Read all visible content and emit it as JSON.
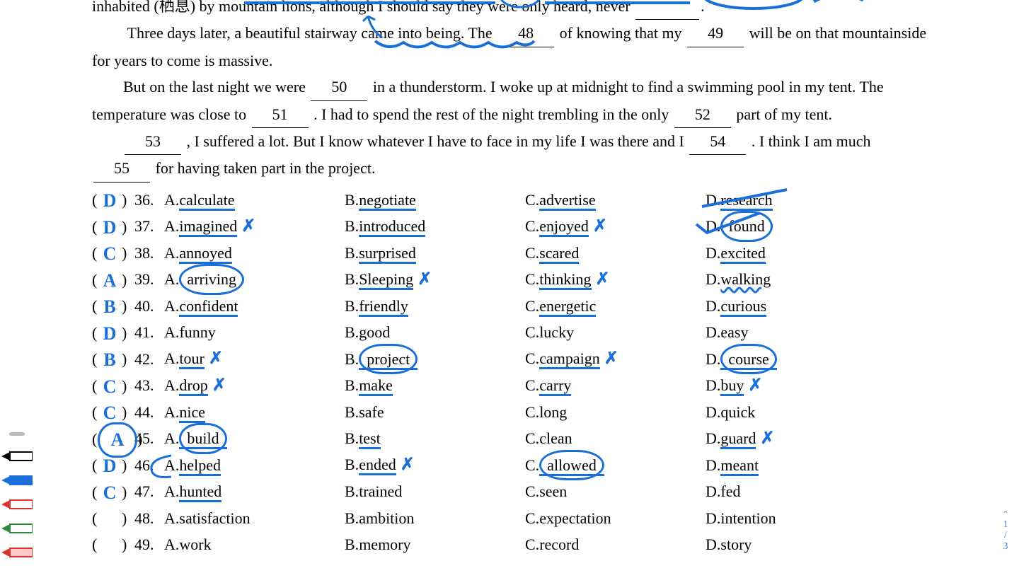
{
  "ink_color": "#1b6fd8",
  "passage": {
    "line0": "inhabited (栖息) by mountain lions, although I should say they were only heard, never",
    "line1_a": "Three days later, a beautiful stairway came into being. The",
    "blank48": "48",
    "line1_b": "of knowing that my",
    "blank49": "49",
    "line1_c": "will be on that mountainside for years to come is massive.",
    "line2_a": "But on the last night we were",
    "blank50": "50",
    "line2_b": "in a thunderstorm. I woke up at midnight to find a swimming pool in my tent. The temperature was close to",
    "blank51": "51",
    "line2_c": ". I had to spend the rest of the night trembling in the only",
    "blank52": "52",
    "line2_d": "part of my tent.",
    "blank53": "53",
    "line3_a": ", I suffered a lot. But I know whatever I have to face in my life I was there and I",
    "blank54": "54",
    "line3_b": ". I think I am much",
    "blank55": "55",
    "line3_c": "for having taken part in the project."
  },
  "questions": [
    {
      "n": "36",
      "written": "D",
      "opts": [
        {
          "l": "A.",
          "w": "calculate",
          "u": true
        },
        {
          "l": "B.",
          "w": "negotiate",
          "u": true
        },
        {
          "l": "C.",
          "w": "advertise",
          "u": true
        },
        {
          "l": "D.",
          "w": "research",
          "u": true,
          "slash": true
        }
      ]
    },
    {
      "n": "37",
      "written": "D",
      "opts": [
        {
          "l": "A.",
          "w": "imagined",
          "u": true,
          "x": true
        },
        {
          "l": "B.",
          "w": "introduced",
          "u": true
        },
        {
          "l": "C.",
          "w": "enjoyed",
          "u": true,
          "x": true
        },
        {
          "l": "D.",
          "w": "found",
          "circle": true,
          "check": true
        }
      ]
    },
    {
      "n": "38",
      "written": "C",
      "opts": [
        {
          "l": "A.",
          "w": "annoyed",
          "u": true
        },
        {
          "l": "B.",
          "w": "surprised",
          "u": true
        },
        {
          "l": "C.",
          "w": "scared",
          "u": true
        },
        {
          "l": "D.",
          "w": "excited",
          "u": true
        }
      ]
    },
    {
      "n": "39",
      "written": "A",
      "opts": [
        {
          "l": "A.",
          "w": "arriving",
          "circle": true
        },
        {
          "l": "B.",
          "w": "Sleeping",
          "u": true,
          "x": true
        },
        {
          "l": "C.",
          "w": "thinking",
          "u": true,
          "x": true
        },
        {
          "l": "D.",
          "w": "walking",
          "u": true,
          "wavy": true
        }
      ]
    },
    {
      "n": "40",
      "written": "B",
      "opts": [
        {
          "l": "A.",
          "w": "confident",
          "u": true
        },
        {
          "l": "B.",
          "w": "friendly",
          "u": true
        },
        {
          "l": "C.",
          "w": "energetic",
          "u": true
        },
        {
          "l": "D.",
          "w": "curious",
          "u": true
        }
      ]
    },
    {
      "n": "41",
      "written": "D",
      "opts": [
        {
          "l": "A.",
          "w": "funny"
        },
        {
          "l": "B.",
          "w": "good"
        },
        {
          "l": "C.",
          "w": "lucky"
        },
        {
          "l": "D.",
          "w": "easy"
        }
      ]
    },
    {
      "n": "42",
      "written": "B",
      "opts": [
        {
          "l": "A.",
          "w": "tour",
          "u": true,
          "x": true
        },
        {
          "l": "B.",
          "w": "project",
          "u": true,
          "circle": true
        },
        {
          "l": "C.",
          "w": "campaign",
          "u": true,
          "x": true
        },
        {
          "l": "D.",
          "w": "course",
          "u": true,
          "circle": true
        }
      ]
    },
    {
      "n": "43",
      "written": "C",
      "opts": [
        {
          "l": "A.",
          "w": "drop",
          "u": true,
          "x": true
        },
        {
          "l": "B.",
          "w": "make",
          "u": true
        },
        {
          "l": "C.",
          "w": "carry",
          "u": true
        },
        {
          "l": "D.",
          "w": "buy",
          "u": true,
          "x": true
        }
      ]
    },
    {
      "n": "44",
      "written": "C",
      "opts": [
        {
          "l": "A.",
          "w": "nice",
          "u": true
        },
        {
          "l": "B.",
          "w": "safe"
        },
        {
          "l": "C.",
          "w": "long"
        },
        {
          "l": "D.",
          "w": "quick"
        }
      ]
    },
    {
      "n": "45",
      "written": "A",
      "pcircle": true,
      "opts": [
        {
          "l": "A.",
          "w": "build",
          "u": true,
          "circle": true
        },
        {
          "l": "B.",
          "w": "test",
          "u": true
        },
        {
          "l": "C.",
          "w": "clean"
        },
        {
          "l": "D.",
          "w": "guard",
          "u": true,
          "x": true
        }
      ]
    },
    {
      "n": "46",
      "written": "D",
      "opts": [
        {
          "l": "A.",
          "w": "helped",
          "u": true,
          "circleopen": true
        },
        {
          "l": "B.",
          "w": "ended",
          "u": true,
          "x": true
        },
        {
          "l": "C.",
          "w": "allowed",
          "u": true,
          "circle": true
        },
        {
          "l": "D.",
          "w": "meant",
          "u": true
        }
      ]
    },
    {
      "n": "47",
      "written": "C",
      "opts": [
        {
          "l": "A.",
          "w": "hunted",
          "u": true
        },
        {
          "l": "B.",
          "w": "trained"
        },
        {
          "l": "C.",
          "w": "seen"
        },
        {
          "l": "D.",
          "w": "fed"
        }
      ]
    },
    {
      "n": "48",
      "written": "",
      "opts": [
        {
          "l": "A.",
          "w": "satisfaction"
        },
        {
          "l": "B.",
          "w": "ambition"
        },
        {
          "l": "C.",
          "w": "expectation"
        },
        {
          "l": "D.",
          "w": "intention"
        }
      ]
    },
    {
      "n": "49",
      "written": "",
      "opts": [
        {
          "l": "A.",
          "w": "work"
        },
        {
          "l": "B.",
          "w": "memory"
        },
        {
          "l": "C.",
          "w": "record"
        },
        {
          "l": "D.",
          "w": "story"
        }
      ]
    }
  ],
  "toolbar_pens": [
    {
      "color": "#000000",
      "fill": "#ffffff"
    },
    {
      "color": "#1b6fd8",
      "fill": "#1b6fd8"
    },
    {
      "color": "#d9332b",
      "fill": "#ffffff"
    },
    {
      "color": "#2e8b3d",
      "fill": "#ffffff"
    },
    {
      "color": "#d9332b",
      "fill": "#ffc9c9"
    }
  ],
  "page_counter": {
    "current": "1",
    "sep": "/",
    "total": "3"
  }
}
